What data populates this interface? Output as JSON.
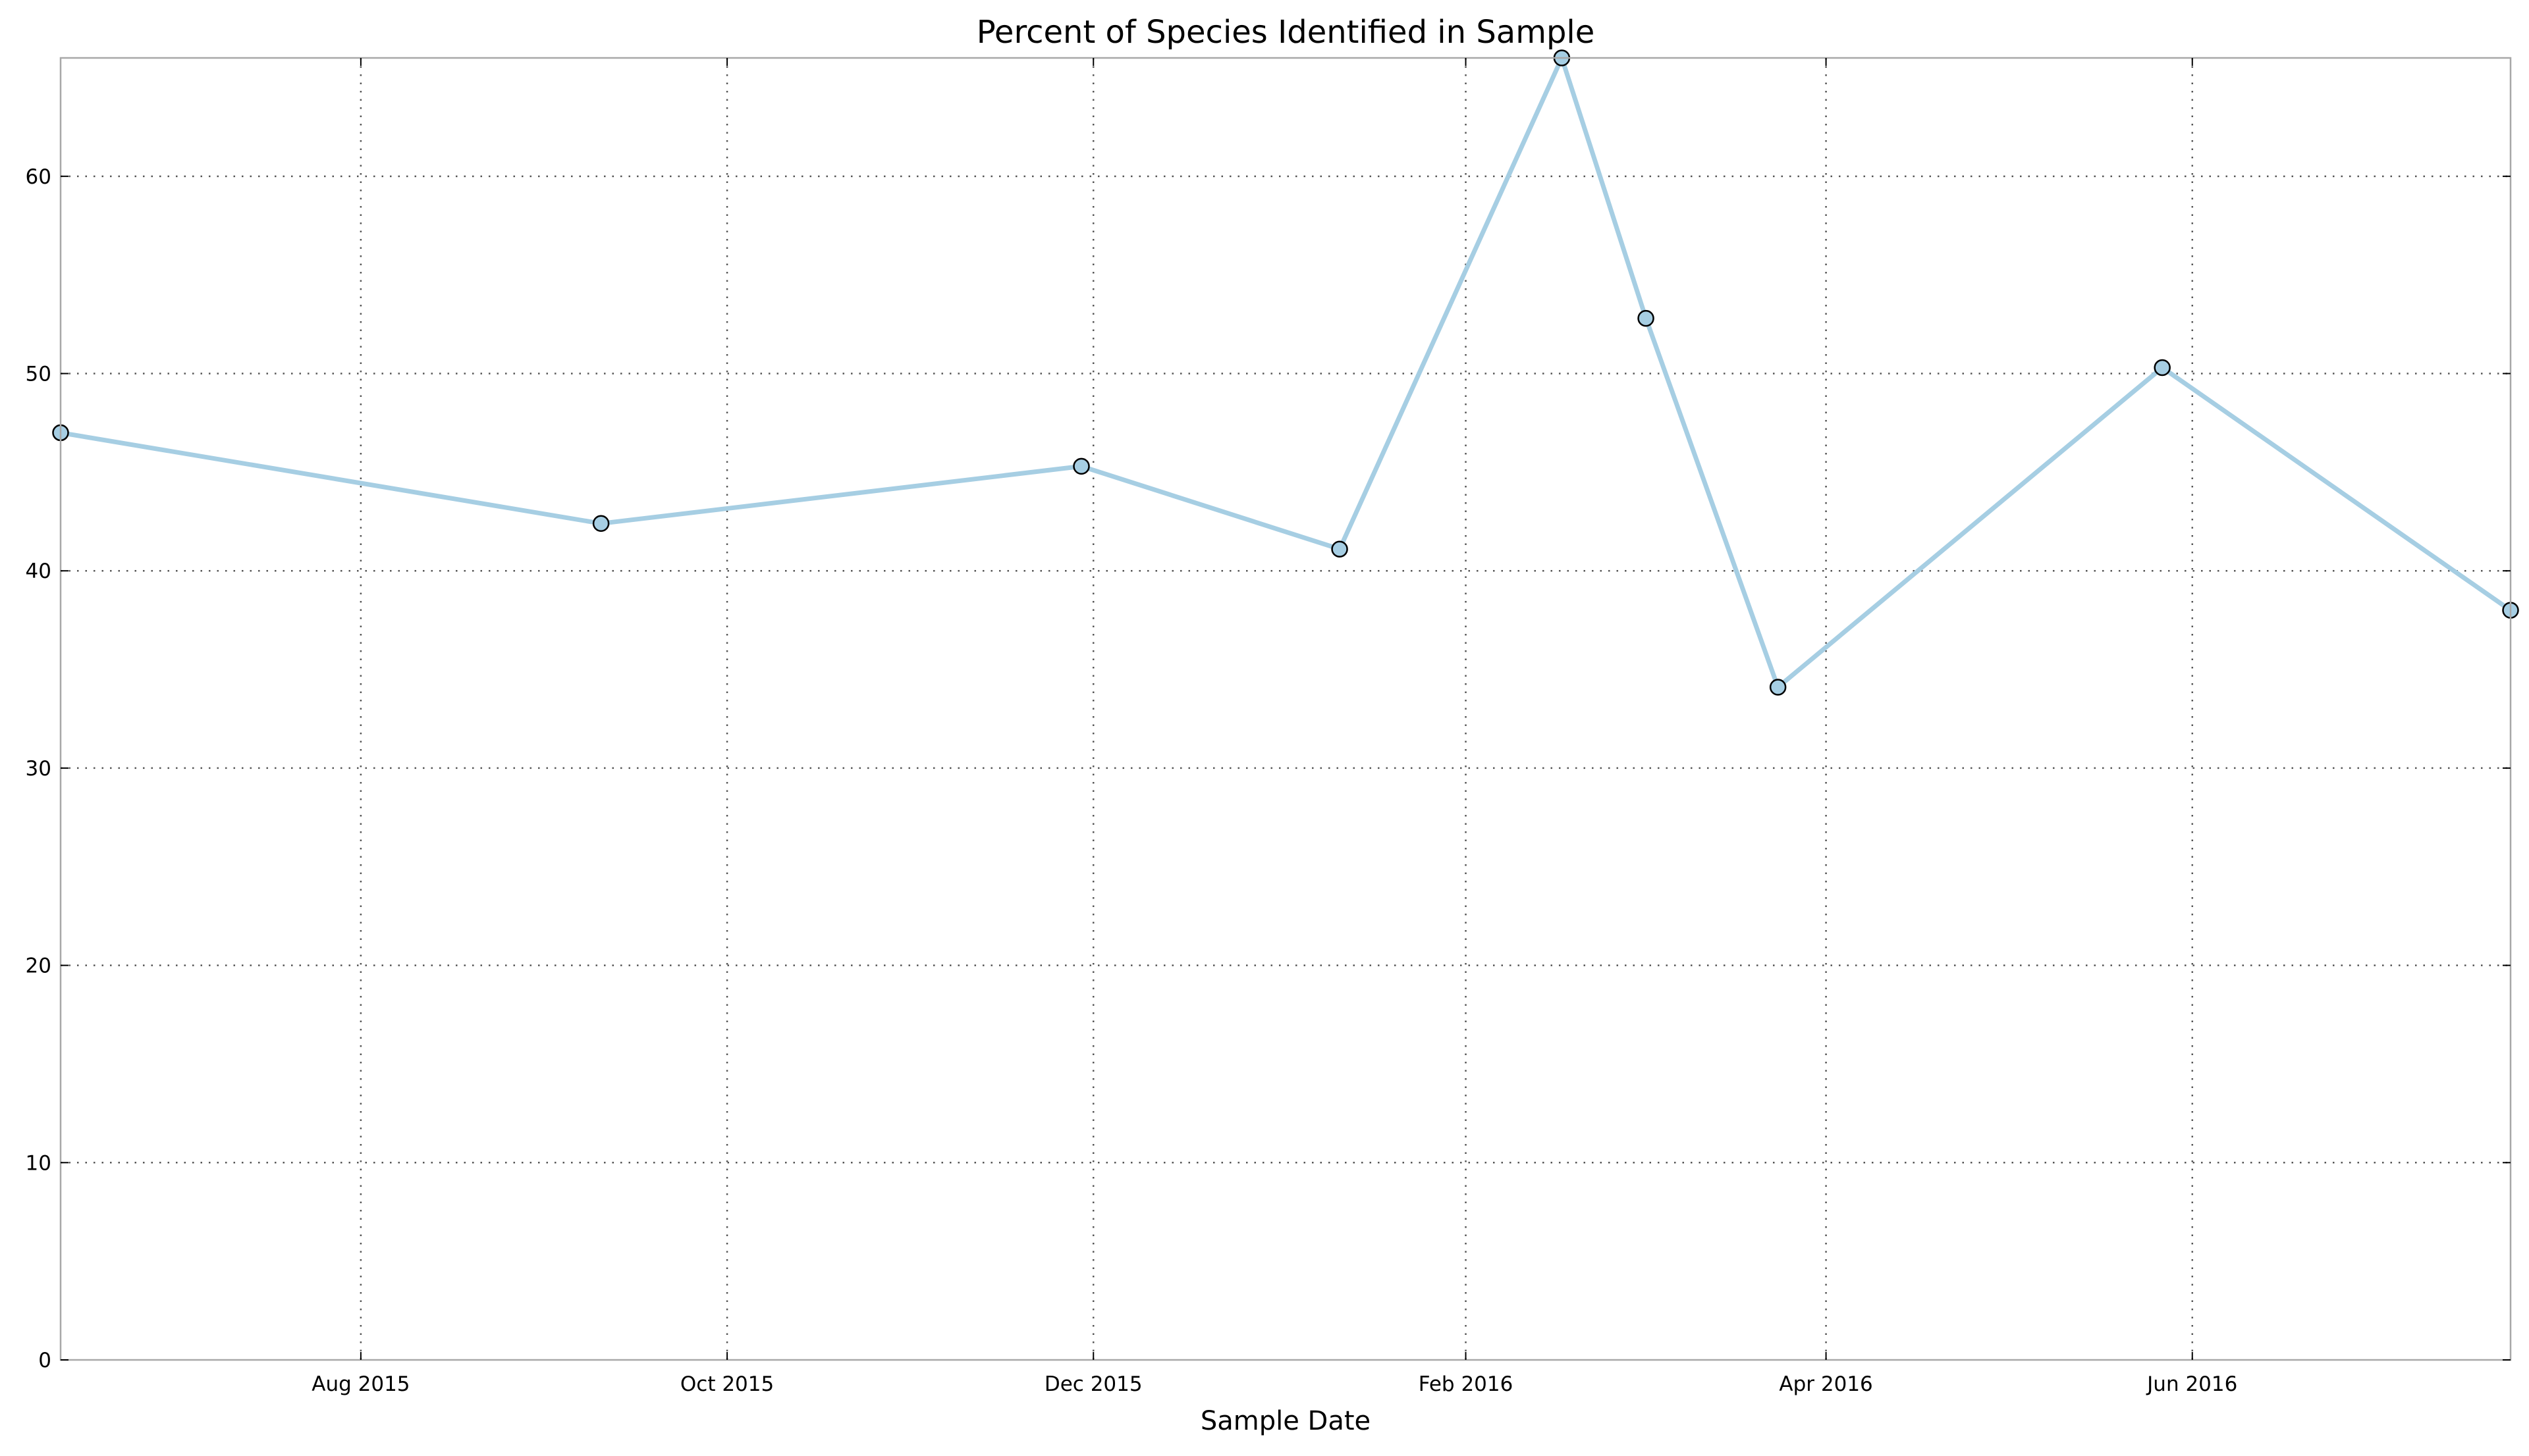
{
  "chart_data": {
    "type": "line",
    "title": "Percent of Species Identified in Sample",
    "xlabel": "Sample Date",
    "ylabel": "",
    "x_type": "date",
    "xlim": [
      "2015-06-12",
      "2016-07-24"
    ],
    "ylim": [
      0,
      66
    ],
    "grid": true,
    "x_ticks": [
      {
        "date": "2015-08-01",
        "label": "Aug 2015"
      },
      {
        "date": "2015-10-01",
        "label": "Oct 2015"
      },
      {
        "date": "2015-12-01",
        "label": "Dec 2015"
      },
      {
        "date": "2016-02-01",
        "label": "Feb 2016"
      },
      {
        "date": "2016-04-01",
        "label": "Apr 2016"
      },
      {
        "date": "2016-06-01",
        "label": "Jun 2016"
      }
    ],
    "y_ticks": [
      0,
      10,
      20,
      30,
      40,
      50,
      60
    ],
    "series": [
      {
        "color": "#a6cee3",
        "marker_color": "#a6cee3",
        "points": [
          {
            "x": "2015-06-12",
            "y": 47.0
          },
          {
            "x": "2015-09-10",
            "y": 42.4
          },
          {
            "x": "2015-11-29",
            "y": 45.3
          },
          {
            "x": "2016-01-11",
            "y": 41.1
          },
          {
            "x": "2016-02-17",
            "y": 66.0
          },
          {
            "x": "2016-03-02",
            "y": 52.8
          },
          {
            "x": "2016-03-24",
            "y": 34.1
          },
          {
            "x": "2016-05-27",
            "y": 50.3
          },
          {
            "x": "2016-07-24",
            "y": 38.0
          }
        ]
      }
    ]
  }
}
